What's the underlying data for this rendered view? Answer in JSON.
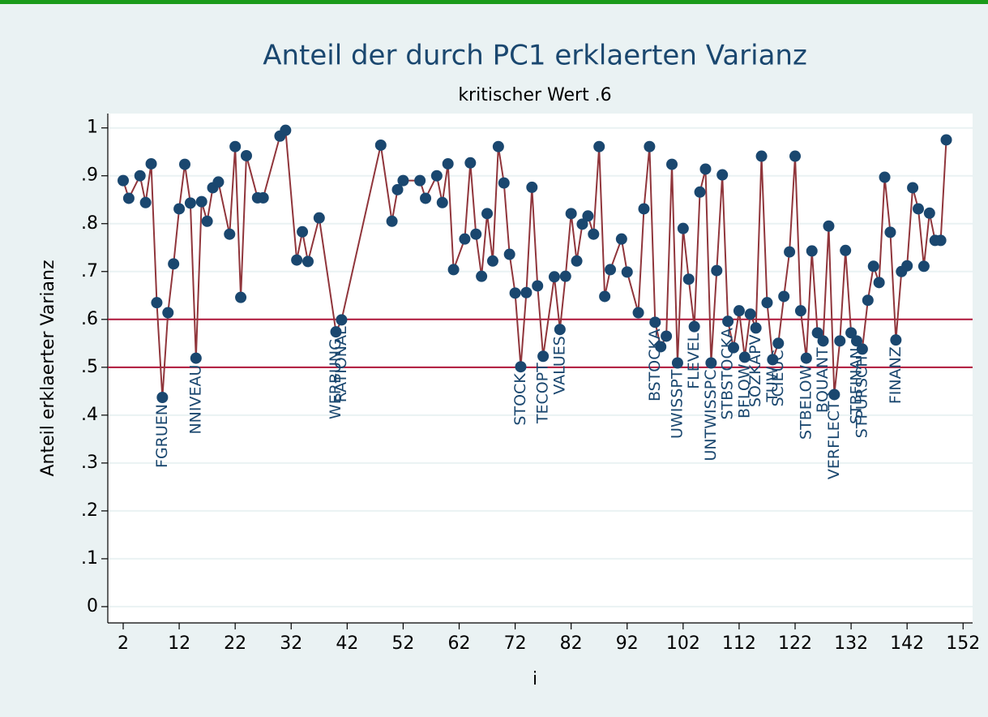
{
  "chart_data": {
    "type": "line",
    "title": "Anteil der durch PC1 erklaerten Varianz",
    "subtitle": "kritischer Wert .6",
    "x_label": "i",
    "y_label": "Anteil erklaerter Varianz",
    "xlim": [
      -0.75,
      153.7
    ],
    "ylim": [
      -0.034,
      1.03
    ],
    "xticks": [
      2,
      12,
      22,
      32,
      42,
      52,
      62,
      72,
      82,
      92,
      102,
      112,
      122,
      132,
      142,
      152
    ],
    "yticks": [
      0,
      {
        "value": 0.1,
        "label": ".1"
      },
      {
        "value": 0.2,
        "label": ".2"
      },
      {
        "value": 0.3,
        "label": ".3"
      },
      {
        "value": 0.4,
        "label": ".4"
      },
      {
        "value": 0.5,
        "label": ".5"
      },
      {
        "value": 0.6,
        "label": ".6"
      },
      {
        "value": 0.7,
        "label": ".7"
      },
      {
        "value": 0.8,
        "label": ".8"
      },
      {
        "value": 0.9,
        "label": ".9"
      },
      1
    ],
    "grid": true,
    "reference_lines": [
      0.6,
      0.5
    ],
    "reference_color": "#b0173a",
    "series": [
      {
        "color": "#90353b",
        "marker_color": "#1a476f",
        "x": [
          2,
          3,
          5,
          6,
          7,
          8,
          9,
          10,
          11,
          12,
          13,
          14,
          15,
          16,
          17,
          18,
          19,
          21,
          22,
          23,
          24,
          26,
          27,
          30,
          31,
          33,
          34,
          35,
          37,
          40,
          41,
          48,
          50,
          51,
          52,
          55,
          56,
          58,
          59,
          60,
          61,
          63,
          64,
          65,
          66,
          67,
          68,
          69,
          70,
          71,
          72,
          73,
          74,
          75,
          76,
          77,
          79,
          80,
          81,
          82,
          83,
          84,
          85,
          86,
          87,
          88,
          89,
          91,
          92,
          94,
          95,
          96,
          97,
          98,
          99,
          100,
          101,
          102,
          103,
          104,
          105,
          106,
          107,
          108,
          109,
          110,
          111,
          112,
          113,
          114,
          115,
          116,
          117,
          118,
          119,
          120,
          121,
          122,
          123,
          124,
          125,
          126,
          127,
          128,
          129,
          130,
          131,
          132,
          133,
          134,
          135,
          136,
          137,
          138,
          139,
          140,
          141,
          142,
          143,
          144,
          145,
          146,
          147,
          148,
          149
        ],
        "values": [
          0.89,
          0.853,
          0.9,
          0.844,
          0.925,
          0.635,
          0.437,
          0.614,
          0.716,
          0.831,
          0.924,
          0.843,
          0.519,
          0.846,
          0.805,
          0.875,
          0.887,
          0.778,
          0.961,
          0.646,
          0.942,
          0.854,
          0.854,
          0.983,
          0.995,
          0.724,
          0.783,
          0.721,
          0.812,
          0.574,
          0.599,
          0.964,
          0.805,
          0.871,
          0.89,
          0.89,
          0.853,
          0.9,
          0.844,
          0.925,
          0.704,
          0.768,
          0.927,
          0.778,
          0.69,
          0.821,
          0.722,
          0.961,
          0.885,
          0.736,
          0.655,
          0.501,
          0.656,
          0.876,
          0.67,
          0.523,
          0.689,
          0.579,
          0.69,
          0.821,
          0.722,
          0.799,
          0.816,
          0.778,
          0.961,
          0.648,
          0.704,
          0.768,
          0.699,
          0.614,
          0.831,
          0.961,
          0.594,
          0.543,
          0.565,
          0.924,
          0.509,
          0.79,
          0.684,
          0.585,
          0.866,
          0.914,
          0.509,
          0.702,
          0.902,
          0.596,
          0.541,
          0.618,
          0.521,
          0.611,
          0.582,
          0.941,
          0.635,
          0.516,
          0.55,
          0.648,
          0.741,
          0.941,
          0.618,
          0.519,
          0.743,
          0.572,
          0.555,
          0.795,
          0.443,
          0.555,
          0.744,
          0.572,
          0.555,
          0.538,
          0.64,
          0.711,
          0.677,
          0.897,
          0.782,
          0.557,
          0.7,
          0.712,
          0.875,
          0.831,
          0.711,
          0.822,
          0.765,
          0.765,
          0.975
        ],
        "point_labels": [
          null,
          null,
          null,
          null,
          null,
          null,
          "FGRUEN",
          null,
          null,
          null,
          null,
          null,
          "NNIVEAU",
          null,
          null,
          null,
          null,
          null,
          null,
          null,
          null,
          null,
          null,
          null,
          null,
          null,
          null,
          null,
          null,
          "WERBUNG",
          "RATIONAL",
          null,
          null,
          null,
          null,
          null,
          null,
          null,
          null,
          null,
          null,
          null,
          null,
          null,
          null,
          null,
          null,
          null,
          null,
          null,
          null,
          "STOCK",
          null,
          null,
          null,
          "TECOPT",
          null,
          "VALUES",
          null,
          null,
          null,
          null,
          null,
          null,
          null,
          null,
          null,
          null,
          null,
          null,
          null,
          null,
          "BSTOCKA",
          null,
          null,
          null,
          "UWISSPT",
          null,
          null,
          "FLEVEL",
          null,
          null,
          "UNTWISSPC",
          null,
          null,
          "STBSTOCKA",
          null,
          null,
          "BFLOW",
          null,
          "SOZKAPV",
          null,
          null,
          "TUW",
          "SCIEUC",
          null,
          null,
          null,
          null,
          "STBELOW",
          null,
          null,
          "BQUANT",
          null,
          "VERFLECT",
          null,
          null,
          null,
          "STBFINAN",
          "STPURSCH",
          null,
          null,
          null,
          null,
          null,
          "FINANZ",
          null,
          null,
          null,
          null,
          null,
          null,
          null,
          null,
          null
        ]
      }
    ]
  }
}
